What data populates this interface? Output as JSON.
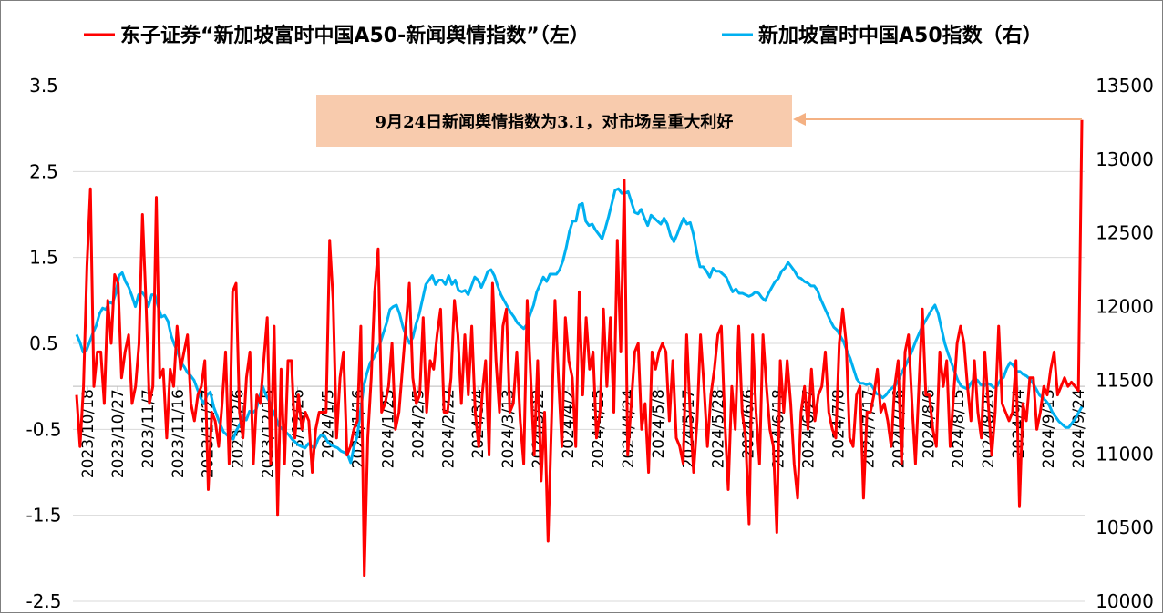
{
  "chart_data": {
    "type": "line",
    "legend_position": "top",
    "grid": true,
    "x_ticks": [
      "2023/10/18",
      "2023/10/27",
      "2023/11/7",
      "2023/11/16",
      "2023/11/27",
      "2023/12/6",
      "2023/12/15",
      "2023/12/26",
      "2024/1/5",
      "2024/1/16",
      "2024/1/25",
      "2024/2/5",
      "2024/2/22",
      "2024/3/4",
      "2024/3/13",
      "2024/3/22",
      "2024/4/2",
      "2024/4/15",
      "2024/4/24",
      "2024/5/8",
      "2024/5/17",
      "2024/5/28",
      "2024/6/6",
      "2024/6/18",
      "2024/6/27",
      "2024/7/8",
      "2024/7/17",
      "2024/7/26",
      "2024/8/6",
      "2024/8/15",
      "2024/8/26",
      "2024/9/4",
      "2024/9/13",
      "2024/9/24"
    ],
    "y_left": {
      "ylim": [
        -2.5,
        3.5
      ],
      "ticks": [
        "3.5",
        "2.5",
        "1.5",
        "0.5",
        "-0.5",
        "-1.5",
        "-2.5"
      ]
    },
    "y_right": {
      "ylim": [
        10000,
        13500
      ],
      "ticks": [
        "13500",
        "13000",
        "12500",
        "12000",
        "11500",
        "11000",
        "10500",
        "10000"
      ]
    },
    "annotation": {
      "text": "9月24日新闻舆情指数为3.1，对市场呈重大利好",
      "box_color": "#F8CBAD",
      "arrow_color": "#F4B183"
    },
    "series": [
      {
        "name": "东子证券“新加坡富时中国A50-新闻舆情指数”（左）",
        "axis": "left",
        "color": "#FF0000",
        "values": [
          -0.1,
          -0.7,
          0.0,
          1.4,
          2.3,
          0.0,
          0.4,
          0.4,
          -0.2,
          1.0,
          0.5,
          1.3,
          1.2,
          0.1,
          0.4,
          0.6,
          -0.2,
          0.0,
          0.5,
          2.0,
          1.0,
          -0.2,
          0.0,
          2.2,
          0.1,
          0.2,
          -0.6,
          0.2,
          0.0,
          0.7,
          0.2,
          0.4,
          0.6,
          -0.2,
          -0.4,
          -0.1,
          0.0,
          0.3,
          -1.2,
          -0.3,
          -0.4,
          -0.7,
          -0.2,
          0.4,
          -0.9,
          1.1,
          1.2,
          -0.3,
          -0.6,
          0.1,
          0.4,
          -0.9,
          -0.1,
          -0.2,
          0.3,
          0.8,
          -0.9,
          0.7,
          -1.5,
          0.2,
          -0.9,
          0.3,
          0.3,
          -0.6,
          -0.1,
          -0.5,
          -0.3,
          -0.4,
          -1.0,
          -0.5,
          -0.3,
          -0.3,
          -0.3,
          1.7,
          1.0,
          -0.6,
          0.1,
          0.4,
          -0.8,
          -0.7,
          -0.5,
          -0.4,
          0.7,
          -2.2,
          -0.6,
          0.1,
          1.1,
          1.6,
          -0.3,
          -0.2,
          0.0,
          0.5,
          -0.5,
          -0.3,
          0.2,
          0.7,
          1.2,
          0.1,
          -0.2,
          -0.1,
          0.8,
          -0.3,
          0.3,
          0.2,
          0.6,
          0.9,
          -0.3,
          -0.3,
          0.1,
          1.0,
          0.6,
          -0.2,
          0.6,
          -0.1,
          0.7,
          -0.3,
          -0.7,
          -0.1,
          0.3,
          -0.8,
          1.2,
          0.3,
          -0.3,
          0.7,
          0.9,
          -0.3,
          -0.2,
          0.4,
          -0.4,
          -0.9,
          1.0,
          0.1,
          -0.8,
          0.3,
          -1.1,
          -0.3,
          -1.8,
          -0.4,
          1.0,
          0.1,
          -0.7,
          0.8,
          0.3,
          0.1,
          -0.7,
          1.1,
          -0.1,
          0.8,
          0.2,
          0.4,
          -0.6,
          -0.3,
          0.9,
          0.0,
          0.8,
          -0.3,
          1.7,
          0.4,
          2.4,
          -0.8,
          -0.2,
          0.4,
          0.5,
          -0.5,
          -0.2,
          -1.0,
          0.4,
          0.2,
          0.4,
          0.5,
          0.4,
          -0.4,
          0.3,
          -0.6,
          -0.7,
          -0.9,
          0.6,
          -0.3,
          -1.0,
          -0.4,
          0.6,
          0.0,
          -0.7,
          -0.1,
          0.2,
          0.6,
          0.7,
          -0.4,
          -1.2,
          0.0,
          -0.5,
          0.7,
          -0.3,
          -0.6,
          -1.6,
          0.6,
          -0.3,
          -0.9,
          0.6,
          0.0,
          -0.5,
          -0.7,
          -1.7,
          0.3,
          -0.3,
          0.3,
          -0.2,
          -0.9,
          -1.3,
          -0.3,
          0.0,
          -0.5,
          0.2,
          -0.4,
          -0.1,
          0.0,
          0.4,
          -0.3,
          -0.5,
          -0.6,
          0.5,
          0.9,
          0.5,
          -0.6,
          -0.7,
          -0.1,
          0.0,
          -1.3,
          -0.3,
          -0.3,
          -0.1,
          0.2,
          -0.3,
          -0.2,
          -0.4,
          -0.7,
          0.0,
          0.3,
          -0.9,
          0.4,
          0.6,
          -0.2,
          -0.9,
          0.0,
          0.9,
          -0.1,
          -0.1,
          -0.5,
          -0.7,
          0.4,
          0.0,
          0.3,
          -0.7,
          -0.1,
          0.5,
          0.7,
          0.5,
          0.0,
          -0.4,
          0.3,
          -0.3,
          -0.6,
          0.4,
          -0.2,
          -0.8,
          -0.3,
          0.7,
          -0.2,
          -0.3,
          -0.4,
          -0.3,
          0.3,
          -1.4,
          -0.2,
          -0.4,
          0.1,
          0.1,
          -0.5,
          -0.3,
          0.0,
          -0.1,
          0.2,
          0.4,
          -0.1,
          0.0,
          0.1,
          0.0,
          0.05,
          0.0,
          -0.05,
          3.1
        ]
      },
      {
        "name": "新加坡富时中国A50指数（右）",
        "axis": "right",
        "color": "#00B0F0",
        "values": [
          11810,
          11760,
          11690,
          11700,
          11760,
          11820,
          11870,
          11950,
          11990,
          11980,
          12030,
          12020,
          12090,
          12210,
          12230,
          12170,
          12130,
          12070,
          12000,
          12080,
          12100,
          12070,
          12000,
          12080,
          12080,
          12000,
          11930,
          11940,
          11900,
          11800,
          11740,
          11690,
          11620,
          11590,
          11550,
          11530,
          11500,
          11440,
          11380,
          11340,
          11400,
          11420,
          11320,
          11260,
          11200,
          11150,
          11130,
          11110,
          11100,
          11160,
          11200,
          11260,
          11230,
          11290,
          11280,
          11300,
          11380,
          11460,
          11400,
          11360,
          11300,
          11250,
          11190,
          11170,
          11150,
          11130,
          11100,
          11080,
          11060,
          11050,
          11040,
          11070,
          11050,
          11040,
          11100,
          11130,
          11120,
          11080,
          11060,
          11050,
          11040,
          11020,
          11010,
          11000,
          10940,
          11050,
          11120,
          11290,
          11460,
          11550,
          11620,
          11650,
          11700,
          11750,
          11820,
          11890,
          11980,
          12000,
          12010,
          11950,
          11860,
          11800,
          11750,
          11790,
          11880,
          11950,
          12050,
          12150,
          12180,
          12210,
          12150,
          12180,
          12180,
          12150,
          12210,
          12150,
          12180,
          12110,
          12100,
          12110,
          12080,
          12140,
          12200,
          12180,
          12130,
          12180,
          12240,
          12250,
          12210,
          12140,
          12080,
          12040,
          12000,
          11960,
          11930,
          11890,
          11870,
          11850,
          11880,
          11950,
          12010,
          12100,
          12150,
          12200,
          12170,
          12220,
          12220,
          12220,
          12250,
          12310,
          12400,
          12510,
          12580,
          12580,
          12690,
          12700,
          12580,
          12550,
          12560,
          12520,
          12490,
          12460,
          12530,
          12610,
          12700,
          12790,
          12800,
          12770,
          12770,
          12780,
          12710,
          12640,
          12630,
          12660,
          12600,
          12550,
          12620,
          12600,
          12580,
          12560,
          12600,
          12560,
          12480,
          12440,
          12490,
          12550,
          12600,
          12560,
          12570,
          12490,
          12370,
          12270,
          12270,
          12240,
          12200,
          12260,
          12240,
          12240,
          12220,
          12200,
          12150,
          12100,
          12120,
          12090,
          12090,
          12080,
          12070,
          12080,
          12100,
          12090,
          12060,
          12040,
          12090,
          12130,
          12170,
          12190,
          12240,
          12260,
          12300,
          12270,
          12240,
          12200,
          12190,
          12170,
          12160,
          12140,
          12140,
          12110,
          12050,
          12000,
          11950,
          11900,
          11860,
          11840,
          11800,
          11760,
          11700,
          11650,
          11580,
          11510,
          11480,
          11480,
          11470,
          11480,
          11450,
          11410,
          11400,
          11380,
          11400,
          11430,
          11450,
          11470,
          11510,
          11560,
          11600,
          11650,
          11700,
          11760,
          11810,
          11860,
          11900,
          11940,
          11980,
          12010,
          11950,
          11850,
          11750,
          11680,
          11620,
          11560,
          11500,
          11460,
          11450,
          11440,
          11480,
          11510,
          11500,
          11470,
          11460,
          11480,
          11470,
          11450,
          11460,
          11500,
          11520,
          11580,
          11620,
          11600,
          11560,
          11560,
          11540,
          11530,
          11510,
          11480,
          11440,
          11400,
          11380,
          11360,
          11330,
          11280,
          11250,
          11220,
          11200,
          11180,
          11180,
          11210,
          11240,
          11280,
          11320
        ]
      }
    ]
  }
}
